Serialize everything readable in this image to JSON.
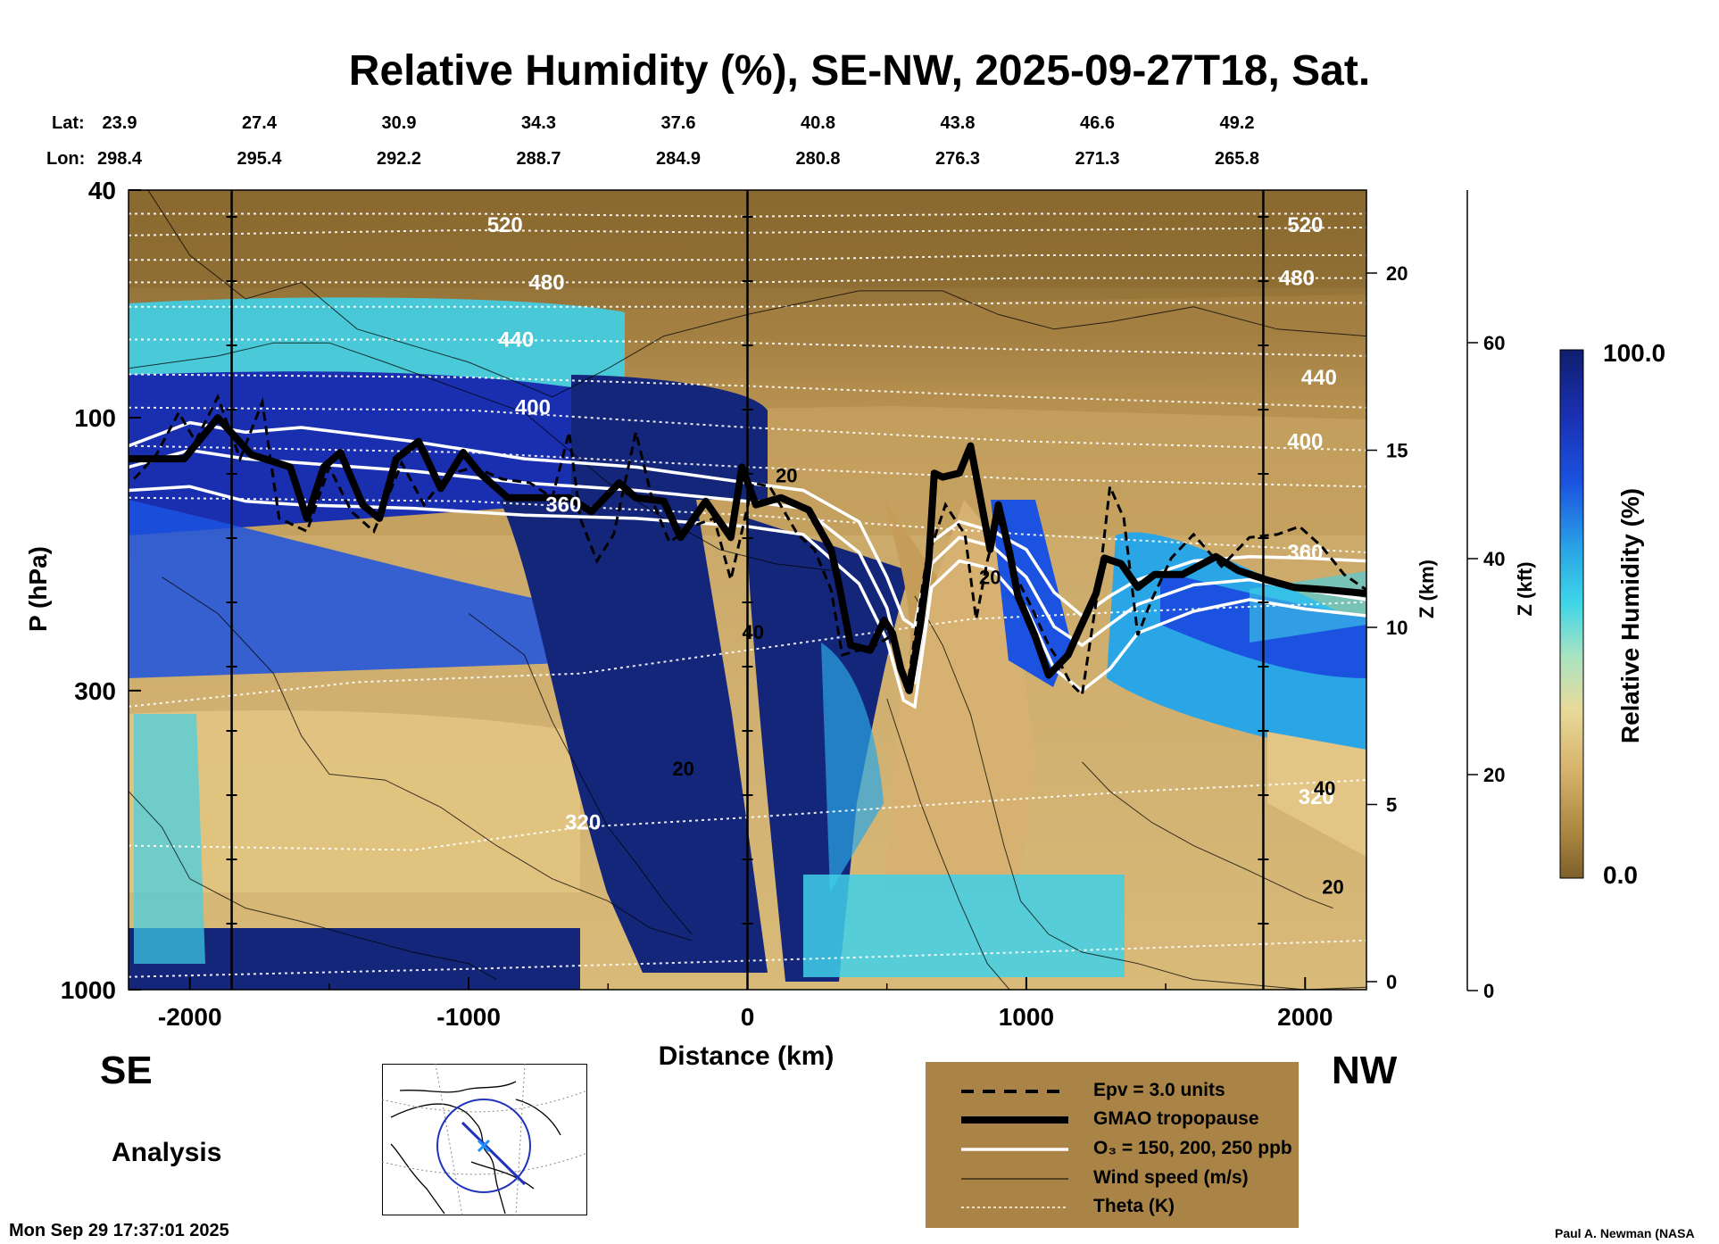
{
  "title": "Relative Humidity (%), SE-NW, 2025-09-27T18, Sat.",
  "lat_label": "Lat:",
  "lon_label": "Lon:",
  "lat_values": [
    "23.9",
    "27.4",
    "30.9",
    "34.3",
    "37.6",
    "40.8",
    "43.8",
    "46.6",
    "49.2"
  ],
  "lon_values": [
    "298.4",
    "295.4",
    "292.2",
    "288.7",
    "284.9",
    "280.8",
    "276.3",
    "271.3",
    "265.8"
  ],
  "direction_left": "SE",
  "direction_right": "NW",
  "analysis_label": "Analysis",
  "timestamp": "Mon Sep 29 17:37:01 2025",
  "credit": "Paul A. Newman (NASA",
  "colorbar": {
    "label": "Relative Humidity (%)",
    "max_label": "100.0",
    "min_label": "0.0"
  },
  "legend": {
    "epv": "Epv = 3.0 units",
    "tropopause": "GMAO tropopause",
    "ozone": "O₃ = 150, 200, 250 ppb",
    "wind": "Wind speed (m/s)",
    "theta": "Theta (K)"
  },
  "colors": {
    "legend_bg": "#a98446",
    "rh_low": "#8a6a30",
    "rh_mid": "#e3c585",
    "rh_cyan": "#3fd0e8",
    "rh_high": "#14267a"
  },
  "chart_data": {
    "type": "heatmap",
    "title": "Relative Humidity (%), SE-NW, 2025-09-27T18, Sat.",
    "xlabel": "Distance (km)",
    "ylabel": "P (hPa)",
    "z_km_label": "Z (km)",
    "z_kft_label": "Z (kft)",
    "xlim": [
      -2220,
      2220
    ],
    "ylim_hpa": [
      1000,
      40
    ],
    "y_scale": "log",
    "x_ticks": [
      -2000,
      -1000,
      0,
      1000,
      2000
    ],
    "p_ticks": [
      40,
      100,
      300,
      1000
    ],
    "z_km_ticks": [
      0,
      5,
      10,
      15,
      20
    ],
    "z_kft_ticks": [
      0,
      20,
      40,
      60
    ],
    "colorbar_range": [
      0,
      100
    ],
    "theta_contours": [
      {
        "label": "520",
        "x": -870,
        "p": 46
      },
      {
        "label": "480",
        "x": -720,
        "p": 58
      },
      {
        "label": "440",
        "x": -830,
        "p": 73
      },
      {
        "label": "400",
        "x": -770,
        "p": 96
      },
      {
        "label": "360",
        "x": -660,
        "p": 142
      },
      {
        "label": "320",
        "x": -590,
        "p": 510
      },
      {
        "label": "520",
        "x": 2000,
        "p": 46
      },
      {
        "label": "480",
        "x": 1970,
        "p": 57
      },
      {
        "label": "440",
        "x": 2050,
        "p": 85
      },
      {
        "label": "400",
        "x": 2000,
        "p": 110
      },
      {
        "label": "360",
        "x": 2000,
        "p": 172
      },
      {
        "label": "320",
        "x": 2040,
        "p": 460
      }
    ],
    "wind_labels": [
      {
        "label": "20",
        "x": 140,
        "p": 126
      },
      {
        "label": "20",
        "x": 870,
        "p": 190
      },
      {
        "label": "40",
        "x": 20,
        "p": 237
      },
      {
        "label": "20",
        "x": -230,
        "p": 410
      },
      {
        "label": "40",
        "x": 2070,
        "p": 444
      },
      {
        "label": "20",
        "x": 2100,
        "p": 660
      }
    ],
    "tropopause": [
      [
        -2220,
        118
      ],
      [
        -2020,
        118
      ],
      [
        -1900,
        100
      ],
      [
        -1780,
        116
      ],
      [
        -1640,
        122
      ],
      [
        -1580,
        150
      ],
      [
        -1520,
        122
      ],
      [
        -1460,
        115
      ],
      [
        -1380,
        142
      ],
      [
        -1320,
        150
      ],
      [
        -1260,
        118
      ],
      [
        -1180,
        110
      ],
      [
        -1100,
        133
      ],
      [
        -1020,
        115
      ],
      [
        -960,
        125
      ],
      [
        -860,
        138
      ],
      [
        -760,
        138
      ],
      [
        -640,
        138
      ],
      [
        -560,
        146
      ],
      [
        -460,
        130
      ],
      [
        -400,
        138
      ],
      [
        -300,
        140
      ],
      [
        -240,
        162
      ],
      [
        -150,
        140
      ],
      [
        -60,
        162
      ],
      [
        -20,
        122
      ],
      [
        30,
        142
      ],
      [
        120,
        138
      ],
      [
        220,
        145
      ],
      [
        300,
        170
      ],
      [
        330,
        198
      ],
      [
        370,
        250
      ],
      [
        440,
        255
      ],
      [
        490,
        226
      ],
      [
        520,
        238
      ],
      [
        550,
        275
      ],
      [
        580,
        300
      ],
      [
        620,
        230
      ],
      [
        650,
        178
      ],
      [
        670,
        125
      ],
      [
        700,
        127
      ],
      [
        760,
        125
      ],
      [
        800,
        112
      ],
      [
        840,
        142
      ],
      [
        870,
        170
      ],
      [
        900,
        142
      ],
      [
        940,
        172
      ],
      [
        970,
        205
      ],
      [
        1030,
        240
      ],
      [
        1080,
        282
      ],
      [
        1150,
        260
      ],
      [
        1190,
        235
      ],
      [
        1250,
        203
      ],
      [
        1280,
        176
      ],
      [
        1340,
        180
      ],
      [
        1400,
        198
      ],
      [
        1460,
        188
      ],
      [
        1560,
        188
      ],
      [
        1680,
        175
      ],
      [
        1760,
        185
      ],
      [
        1860,
        192
      ],
      [
        1960,
        198
      ],
      [
        2080,
        200
      ],
      [
        2220,
        203
      ]
    ],
    "epv": [
      [
        -2200,
        128
      ],
      [
        -2120,
        116
      ],
      [
        -2040,
        98
      ],
      [
        -1980,
        110
      ],
      [
        -1900,
        92
      ],
      [
        -1820,
        118
      ],
      [
        -1740,
        94
      ],
      [
        -1680,
        150
      ],
      [
        -1580,
        158
      ],
      [
        -1500,
        122
      ],
      [
        -1420,
        146
      ],
      [
        -1340,
        158
      ],
      [
        -1240,
        120
      ],
      [
        -1160,
        142
      ],
      [
        -1080,
        126
      ],
      [
        -980,
        122
      ],
      [
        -880,
        128
      ],
      [
        -780,
        130
      ],
      [
        -700,
        138
      ],
      [
        -640,
        106
      ],
      [
        -600,
        150
      ],
      [
        -540,
        178
      ],
      [
        -480,
        160
      ],
      [
        -400,
        106
      ],
      [
        -340,
        140
      ],
      [
        -280,
        165
      ],
      [
        -200,
        155
      ],
      [
        -120,
        150
      ],
      [
        -60,
        192
      ],
      [
        20,
        130
      ],
      [
        80,
        132
      ],
      [
        180,
        160
      ],
      [
        240,
        170
      ],
      [
        300,
        200
      ],
      [
        340,
        260
      ],
      [
        400,
        255
      ],
      [
        460,
        250
      ],
      [
        520,
        240
      ],
      [
        570,
        302
      ],
      [
        640,
        180
      ],
      [
        710,
        142
      ],
      [
        780,
        160
      ],
      [
        820,
        225
      ],
      [
        860,
        178
      ],
      [
        900,
        150
      ],
      [
        960,
        188
      ],
      [
        1020,
        215
      ],
      [
        1080,
        250
      ],
      [
        1120,
        268
      ],
      [
        1160,
        292
      ],
      [
        1200,
        305
      ],
      [
        1260,
        196
      ],
      [
        1300,
        132
      ],
      [
        1350,
        150
      ],
      [
        1400,
        240
      ],
      [
        1450,
        208
      ],
      [
        1520,
        176
      ],
      [
        1600,
        160
      ],
      [
        1700,
        182
      ],
      [
        1800,
        162
      ],
      [
        1900,
        160
      ],
      [
        1980,
        155
      ],
      [
        2060,
        168
      ],
      [
        2140,
        188
      ],
      [
        2220,
        200
      ]
    ],
    "ozone": [
      {
        "level": "250 ppb",
        "points": [
          [
            -2220,
            112
          ],
          [
            -2000,
            102
          ],
          [
            -1800,
            106
          ],
          [
            -1600,
            104
          ],
          [
            -1200,
            110
          ],
          [
            -800,
            118
          ],
          [
            -400,
            122
          ],
          [
            0,
            130
          ],
          [
            200,
            134
          ],
          [
            400,
            152
          ],
          [
            500,
            190
          ],
          [
            560,
            225
          ],
          [
            600,
            232
          ],
          [
            660,
            165
          ],
          [
            760,
            152
          ],
          [
            880,
            158
          ],
          [
            1000,
            170
          ],
          [
            1100,
            202
          ],
          [
            1200,
            222
          ],
          [
            1300,
            205
          ],
          [
            1400,
            192
          ],
          [
            1600,
            178
          ],
          [
            1800,
            175
          ],
          [
            2000,
            176
          ],
          [
            2220,
            178
          ]
        ]
      },
      {
        "level": "200 ppb",
        "points": [
          [
            -2220,
            122
          ],
          [
            -2000,
            114
          ],
          [
            -1800,
            118
          ],
          [
            -1600,
            120
          ],
          [
            -1200,
            124
          ],
          [
            -800,
            130
          ],
          [
            -400,
            134
          ],
          [
            0,
            140
          ],
          [
            200,
            144
          ],
          [
            400,
            172
          ],
          [
            500,
            215
          ],
          [
            560,
            282
          ],
          [
            600,
            290
          ],
          [
            660,
            180
          ],
          [
            760,
            162
          ],
          [
            880,
            168
          ],
          [
            1000,
            190
          ],
          [
            1100,
            232
          ],
          [
            1200,
            250
          ],
          [
            1300,
            230
          ],
          [
            1400,
            212
          ],
          [
            1600,
            196
          ],
          [
            1800,
            192
          ],
          [
            2000,
            200
          ],
          [
            2220,
            208
          ]
        ]
      },
      {
        "level": "150 ppb",
        "points": [
          [
            -2220,
            134
          ],
          [
            -2000,
            132
          ],
          [
            -1800,
            140
          ],
          [
            -1600,
            142
          ],
          [
            -1200,
            144
          ],
          [
            -800,
            148
          ],
          [
            -400,
            150
          ],
          [
            0,
            155
          ],
          [
            200,
            160
          ],
          [
            400,
            195
          ],
          [
            500,
            245
          ],
          [
            560,
            312
          ],
          [
            600,
            320
          ],
          [
            660,
            198
          ],
          [
            760,
            178
          ],
          [
            880,
            184
          ],
          [
            1000,
            215
          ],
          [
            1100,
            275
          ],
          [
            1200,
            300
          ],
          [
            1300,
            275
          ],
          [
            1400,
            238
          ],
          [
            1600,
            218
          ],
          [
            1800,
            208
          ],
          [
            2000,
            216
          ],
          [
            2220,
            222
          ]
        ]
      }
    ]
  }
}
